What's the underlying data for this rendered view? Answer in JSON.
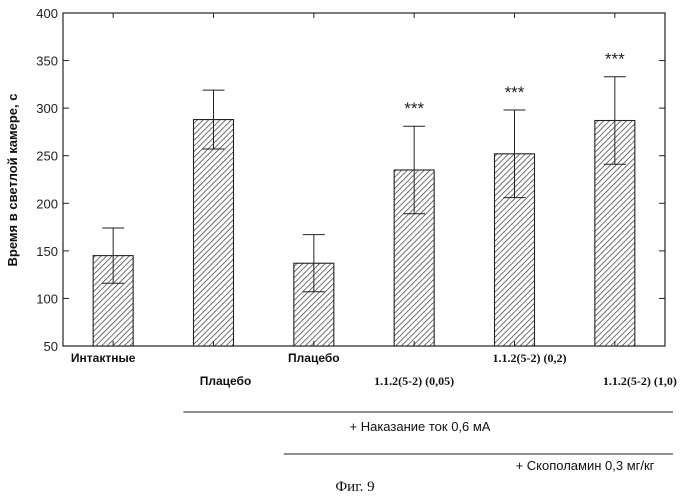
{
  "chart_data": {
    "type": "bar",
    "categories": [
      "Интактные",
      "Плацебо",
      "Плацебо",
      "1.1.2(5-2) (0,05)",
      "1.1.2(5-2) (0,2)",
      "1.1.2(5-2) (1,0)"
    ],
    "values": [
      145,
      288,
      137,
      235,
      252,
      287
    ],
    "errors": [
      29,
      31,
      30,
      46,
      46,
      46
    ],
    "significance": [
      "",
      "",
      "",
      "***",
      "***",
      "***"
    ],
    "ylabel": "Время в светлой камере, с",
    "xlabel": "",
    "ylim": [
      50,
      400
    ],
    "yticks": [
      50,
      100,
      150,
      200,
      250,
      300,
      350,
      400
    ],
    "grid": false,
    "bar_fill": "hatched",
    "group_labels": [
      {
        "text": "+ Наказание ток 0,6 мА",
        "from_category": 1,
        "to_category": 5
      },
      {
        "text": "+ Скополамин 0,3 мг/кг",
        "from_category": 2,
        "to_category": 5
      }
    ]
  },
  "caption": "Фиг. 9"
}
